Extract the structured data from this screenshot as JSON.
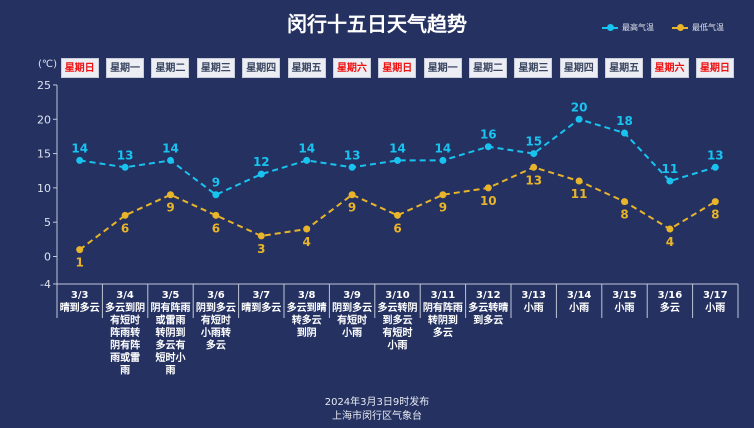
{
  "chart_data": {
    "type": "line",
    "title": "闵行十五日天气趋势",
    "unit_label": "(℃)",
    "ylim": [
      -4,
      25
    ],
    "yticks": [
      -4,
      0,
      5,
      10,
      15,
      20,
      25
    ],
    "grid": false,
    "legend_position": "top-right",
    "categories": [
      "3/3",
      "3/4",
      "3/5",
      "3/6",
      "3/7",
      "3/8",
      "3/9",
      "3/10",
      "3/11",
      "3/12",
      "3/13",
      "3/14",
      "3/15",
      "3/16",
      "3/17"
    ],
    "weekdays": [
      "星期日",
      "星期一",
      "星期二",
      "星期三",
      "星期四",
      "星期五",
      "星期六",
      "星期日",
      "星期一",
      "星期二",
      "星期三",
      "星期四",
      "星期五",
      "星期六",
      "星期日"
    ],
    "weekend_flags": [
      true,
      false,
      false,
      false,
      false,
      false,
      true,
      true,
      false,
      false,
      false,
      false,
      false,
      true,
      true
    ],
    "weather": [
      "晴到多云",
      "多云到阴有短时阵雨转阴有阵雨或雷雨",
      "阴有阵雨或雷雨转阴到多云有短时小雨",
      "阴到多云有短时小雨转多云",
      "晴到多云",
      "多云到晴转多云到阴",
      "阴到多云有短时小雨",
      "多云转阴到多云有短时小雨",
      "阴有阵雨转阴到多云",
      "多云转晴到多云",
      "小雨",
      "小雨",
      "小雨",
      "多云",
      "小雨"
    ],
    "series": [
      {
        "name": "最高气温",
        "color": "#19c3f0",
        "values": [
          14,
          13,
          14,
          9,
          12,
          14,
          13,
          14,
          14,
          16,
          15,
          20,
          18,
          11,
          13
        ]
      },
      {
        "name": "最低气温",
        "color": "#e8b42a",
        "values": [
          1,
          6,
          9,
          6,
          3,
          4,
          9,
          6,
          9,
          10,
          13,
          11,
          8,
          4,
          8
        ]
      }
    ],
    "weekend_color": "#f01010"
  },
  "footer": {
    "line1": "2024年3月3日9时发布",
    "line2": "上海市闵行区气象台"
  }
}
